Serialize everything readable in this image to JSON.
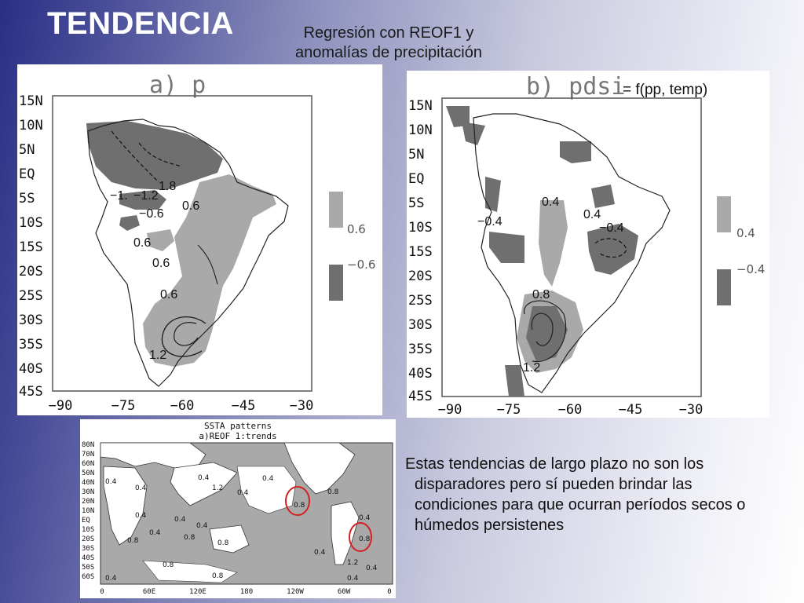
{
  "slide": {
    "title": "TENDENCIA",
    "subtitle_line1": "Regresión con REOF1 y",
    "subtitle_line2": "anomalías de precipitación",
    "pdsi_note": "= f(pp, temp)",
    "body_lines": [
      "Estas tendencias de largo plazo no son los",
      "disparadores pero sí pueden brindar las",
      "condiciones para que ocurran períodos secos o",
      "húmedos persistenes"
    ]
  },
  "map_a": {
    "panel_label": "a)  p",
    "lat_labels": [
      "15N",
      "10N",
      "5N",
      "EQ",
      "5S",
      "10S",
      "15S",
      "20S",
      "25S",
      "30S",
      "35S",
      "40S",
      "45S"
    ],
    "lon_labels": [
      "−90",
      "−75",
      "−60",
      "−45",
      "−30"
    ],
    "contour_labels": [
      "1.8",
      "−1.",
      "−1.2",
      "−0.6",
      "0.6",
      "0.6",
      "0.6",
      "0.6",
      "1.2"
    ],
    "legend": [
      "0.6",
      "−0.6"
    ],
    "colors": {
      "positive": "#a9a9a9",
      "negative": "#6f6f6f"
    }
  },
  "map_b": {
    "panel_label": "b)  pdsi",
    "lat_labels": [
      "15N",
      "10N",
      "5N",
      "EQ",
      "5S",
      "10S",
      "15S",
      "20S",
      "25S",
      "30S",
      "35S",
      "40S",
      "45S"
    ],
    "lon_labels": [
      "−90",
      "−75",
      "−60",
      "−45",
      "−30"
    ],
    "contour_labels": [
      "0.4",
      "0.4",
      "−0.4",
      "−0.4",
      "0.8",
      "1.2"
    ],
    "legend": [
      "0.4",
      "−0.4"
    ]
  },
  "map_c": {
    "title_line1": "SSTA patterns",
    "title_line2": "a)REOF 1:trends",
    "lat_labels": [
      "80N",
      "70N",
      "60N",
      "50N",
      "40N",
      "30N",
      "20N",
      "10N",
      "EQ",
      "10S",
      "20S",
      "30S",
      "40S",
      "50S",
      "60S"
    ],
    "lon_labels": [
      "0",
      "60E",
      "120E",
      "180",
      "120W",
      "60W",
      "0"
    ],
    "contour_labels": [
      "0.4",
      "0.4",
      "0.4",
      "1.2",
      "0.4",
      "0.8",
      "0.4",
      "0.8",
      "0.4",
      "0.8",
      "0.4",
      "0.4",
      "0.8",
      "0.4",
      "0.8",
      "0.4",
      "1.2",
      "0.4",
      "0.8",
      "0.4",
      "0.8",
      "0.4",
      "0.4",
      "0.8"
    ],
    "highlight_color": "#d42020"
  }
}
